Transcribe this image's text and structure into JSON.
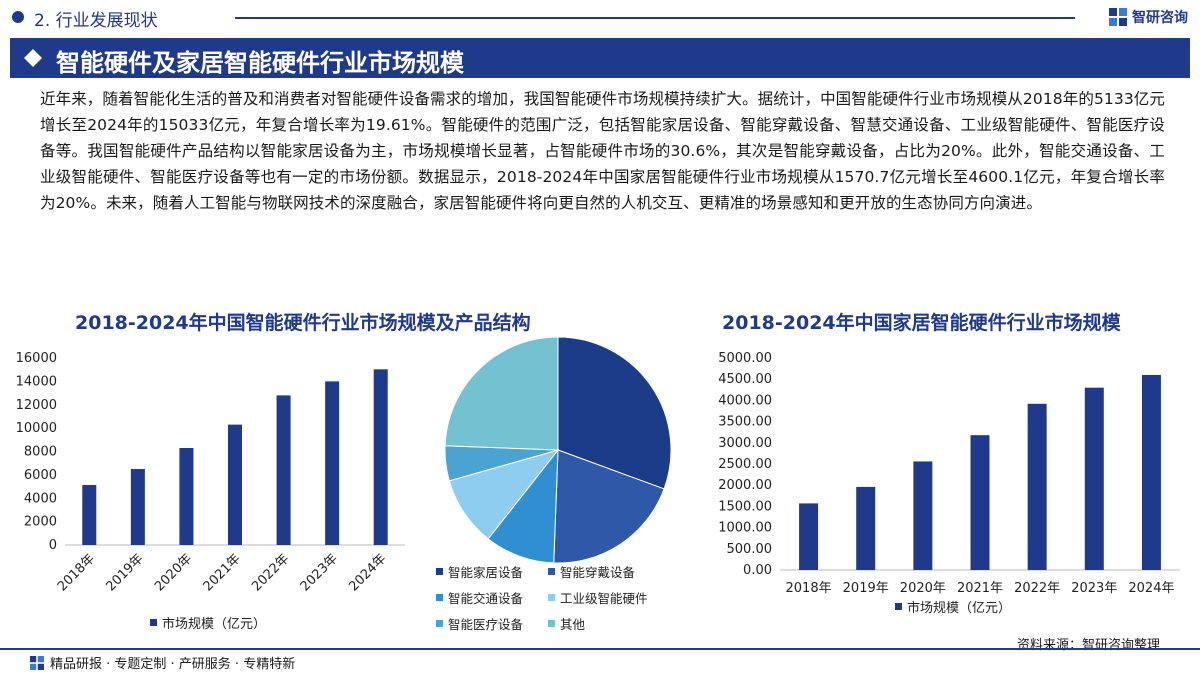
{
  "header": {
    "section_label": "2. 行业发展现状",
    "brand_name": "智研咨询",
    "title": "智能硬件及家居智能硬件行业市场规模",
    "paragraph": "近年来，随着智能化生活的普及和消费者对智能硬件设备需求的增加，我国智能硬件市场规模持续扩大。据统计，中国智能硬件行业市场规模从2018年的5133亿元增长至2024年的15033亿元，年复合增长率为19.61%。智能硬件的范围广泛，包括智能家居设备、智能穿戴设备、智慧交通设备、工业级智能硬件、智能医疗设备等。我国智能硬件产品结构以智能家居设备为主，市场规模增长显著，占智能硬件市场的30.6%，其次是智能穿戴设备，占比为20%。此外，智能交通设备、工业级智能硬件、智能医疗设备等也有一定的市场份额。数据显示，2018-2024年中国家居智能硬件行业市场规模从1570.7亿元增长至4600.1亿元，年复合增长率为20%。未来，随着人工智能与物联网技术的深度融合，家居智能硬件将向更自然的人机交互、更精准的场景感知和更开放的生态协同方向演进。"
  },
  "footer": {
    "services": "精品研报 · 专题定制 · 产研服务 · 专精特新",
    "source": "资料来源：智研咨询整理"
  },
  "colors": {
    "brand": "#1f3a8a",
    "bar": "#1f3a8a"
  },
  "chart_data": [
    {
      "type": "bar",
      "title": "2018-2024年中国智能硬件行业市场规模及产品结构",
      "categories": [
        "2018年",
        "2019年",
        "2020年",
        "2021年",
        "2022年",
        "2023年",
        "2024年"
      ],
      "series": [
        {
          "name": "市场规模（亿元）",
          "values": [
            5133,
            6500,
            8300,
            10300,
            12800,
            14000,
            15033
          ]
        }
      ],
      "ylim": [
        0,
        16000
      ],
      "yticks": [
        "0",
        "2000",
        "4000",
        "6000",
        "8000",
        "10000",
        "12000",
        "14000",
        "16000"
      ],
      "grid": false,
      "legend": "bottom"
    },
    {
      "type": "pie",
      "labels": [
        "智能家居设备",
        "智能穿戴设备",
        "智能交通设备",
        "工业级智能硬件",
        "智能医疗设备",
        "其他"
      ],
      "values": [
        30.6,
        20,
        10,
        10,
        5,
        24.4
      ],
      "colors": [
        "#1b3c88",
        "#2f58a8",
        "#2f8fd0",
        "#8ecdf0",
        "#4aa3d0",
        "#72c2d2"
      ],
      "legend": "bottom"
    },
    {
      "type": "bar",
      "title": "2018-2024年中国家居智能硬件行业市场规模",
      "categories": [
        "2018年",
        "2019年",
        "2020年",
        "2021年",
        "2022年",
        "2023年",
        "2024年"
      ],
      "series": [
        {
          "name": "市场规模（亿元）",
          "values": [
            1570.7,
            1960,
            2560,
            3180,
            3920,
            4300,
            4600.1
          ]
        }
      ],
      "ylim": [
        0,
        5000
      ],
      "yticks": [
        "0.00",
        "500.00",
        "1000.00",
        "1500.00",
        "2000.00",
        "2500.00",
        "3000.00",
        "3500.00",
        "4000.00",
        "4500.00",
        "5000.00"
      ],
      "grid": false,
      "legend": "bottom"
    }
  ]
}
